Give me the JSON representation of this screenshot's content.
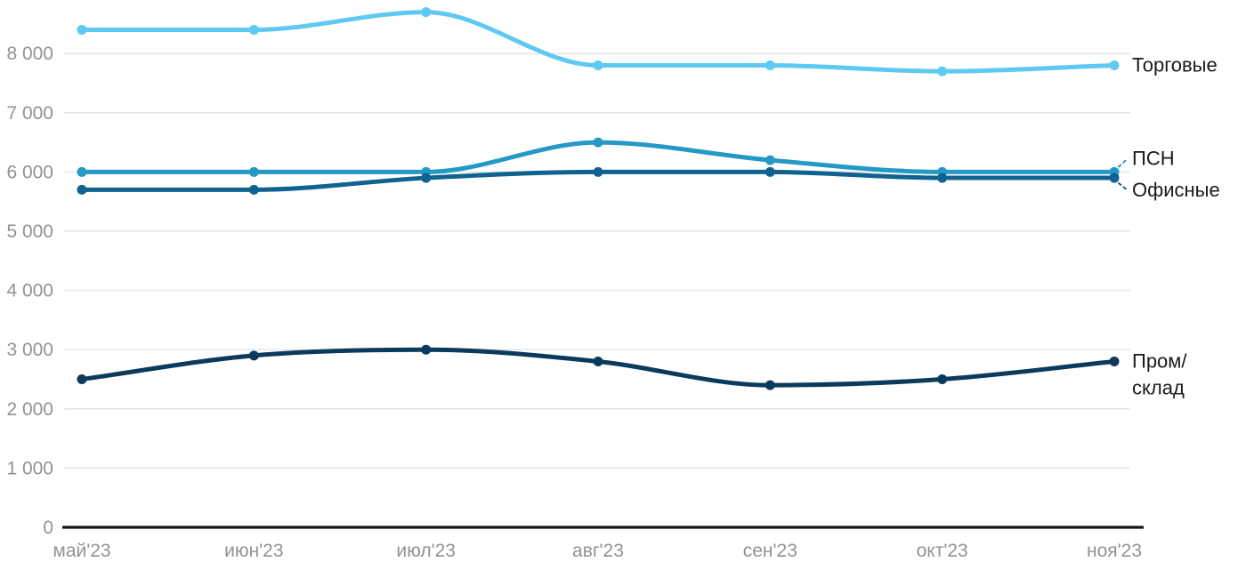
{
  "page": {
    "background": "#ffffff"
  },
  "chart_data": {
    "type": "line",
    "title": "",
    "xlabel": "",
    "ylabel": "",
    "categories": [
      "май'23",
      "июн'23",
      "июл'23",
      "авг'23",
      "сен'23",
      "окт'23",
      "ноя'23"
    ],
    "series": [
      {
        "key": "torgovye",
        "name": "Торговые",
        "color": "#5FC9F2",
        "values": [
          8400,
          8400,
          8700,
          7800,
          7800,
          7700,
          7800
        ],
        "label_lines": [
          "Торговые"
        ],
        "label_dy": 0,
        "leader": false
      },
      {
        "key": "psn",
        "name": "ПСН",
        "color": "#2499C6",
        "values": [
          6000,
          6000,
          6000,
          6500,
          6200,
          6000,
          6000
        ],
        "label_lines": [
          "ПСН"
        ],
        "label_dy": -15,
        "leader": true
      },
      {
        "key": "ofisnye",
        "name": "Офисные",
        "color": "#106390",
        "values": [
          5700,
          5700,
          5900,
          6000,
          6000,
          5900,
          5900
        ],
        "label_lines": [
          "Офисные"
        ],
        "label_dy": 14,
        "leader": true
      },
      {
        "key": "prom-sklad",
        "name": "Пром/склад",
        "color": "#0C3A5C",
        "values": [
          2500,
          2900,
          3000,
          2800,
          2400,
          2500,
          2800
        ],
        "label_lines": [
          "Пром/",
          "склад"
        ],
        "label_dy": 0,
        "leader": false
      }
    ],
    "y_axis": {
      "ticks": [
        {
          "value": 0,
          "label": "0"
        },
        {
          "value": 1000,
          "label": "1 000"
        },
        {
          "value": 2000,
          "label": "2 000"
        },
        {
          "value": 3000,
          "label": "3 000"
        },
        {
          "value": 4000,
          "label": "4 000"
        },
        {
          "value": 5000,
          "label": "5 000"
        },
        {
          "value": 6000,
          "label": "6 000"
        },
        {
          "value": 7000,
          "label": "7 000"
        },
        {
          "value": 8000,
          "label": "8 000"
        }
      ],
      "min": 0,
      "max": 8900
    },
    "grid": true,
    "legend_position": "labels-at-line-ends-right",
    "colors": {
      "grid": "#E6E6E6",
      "axis_line": "#161616",
      "axis_text": "#929295",
      "label_text": "#1A1A1A"
    }
  }
}
